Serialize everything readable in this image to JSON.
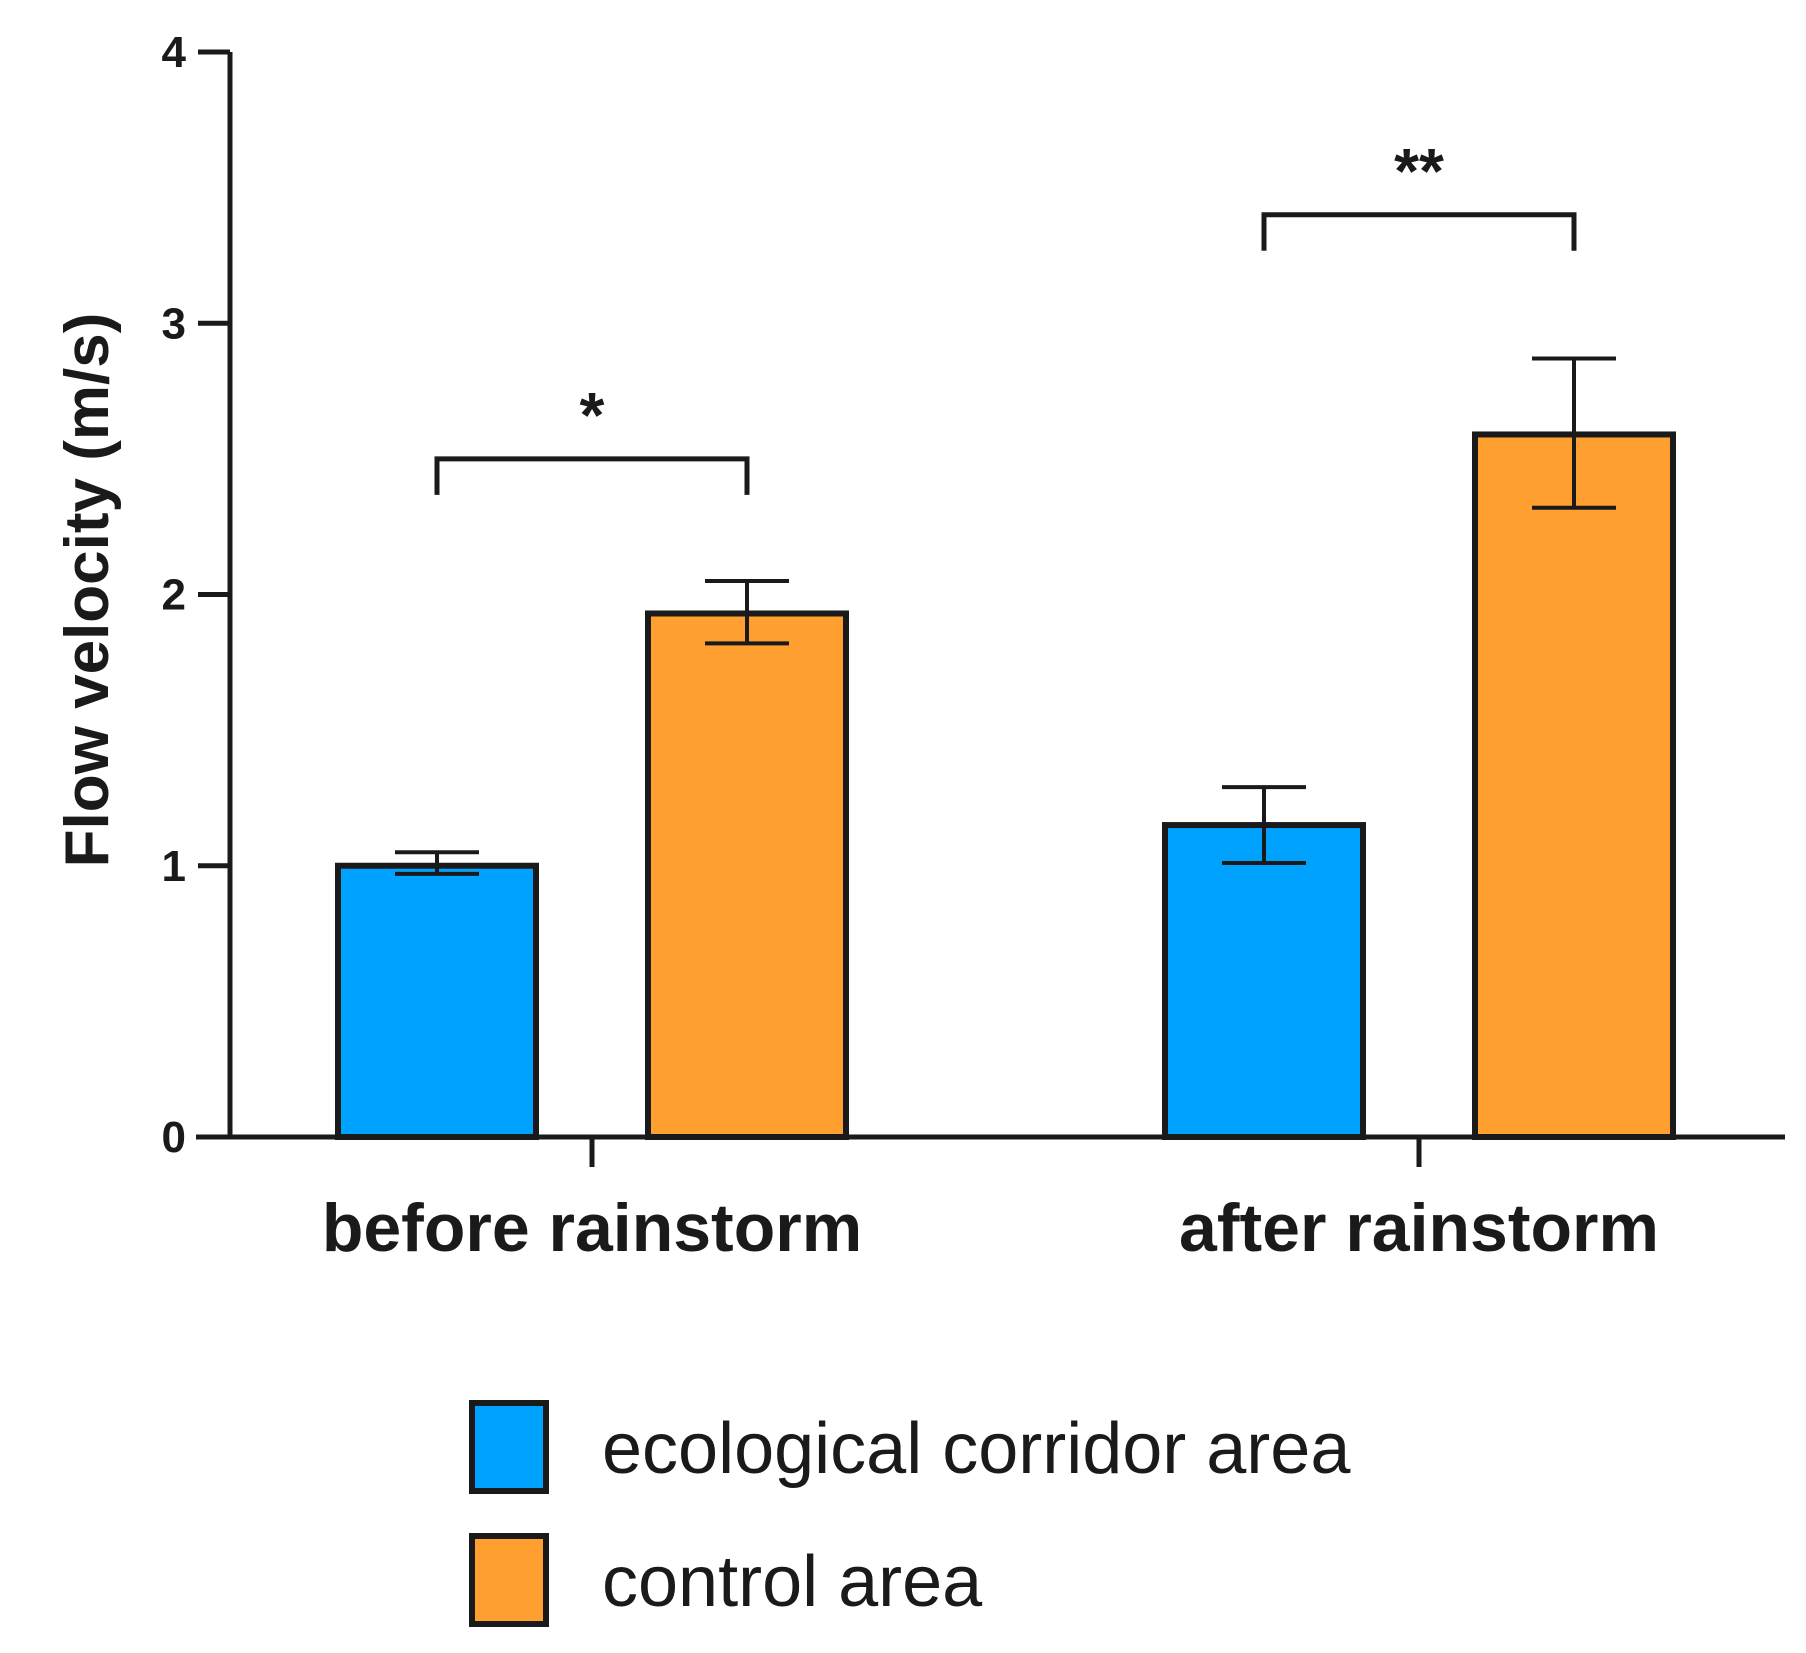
{
  "chart_data": {
    "type": "bar",
    "title": "",
    "xlabel": "",
    "ylabel": "Flow velocity (m/s)",
    "ylim": [
      0,
      4
    ],
    "yticks": [
      "0",
      "1",
      "2",
      "3",
      "4"
    ],
    "categories": [
      "before rainstorm",
      "after rainstorm"
    ],
    "series": [
      {
        "name": "ecological corridor area",
        "color": "#00A2FF",
        "values": [
          1.0,
          1.15
        ],
        "error_low": [
          0.97,
          1.01
        ],
        "error_high": [
          1.05,
          1.29
        ]
      },
      {
        "name": "control area",
        "color": "#FF9F30",
        "values": [
          1.93,
          2.59
        ],
        "error_low": [
          1.82,
          2.32
        ],
        "error_high": [
          2.05,
          2.87
        ]
      }
    ],
    "significance": [
      {
        "category": "before rainstorm",
        "label": "*",
        "bracket_y": 2.5
      },
      {
        "category": "after rainstorm",
        "label": "**",
        "bracket_y": 3.4
      }
    ],
    "legend_position": "bottom-center",
    "grid": false
  }
}
